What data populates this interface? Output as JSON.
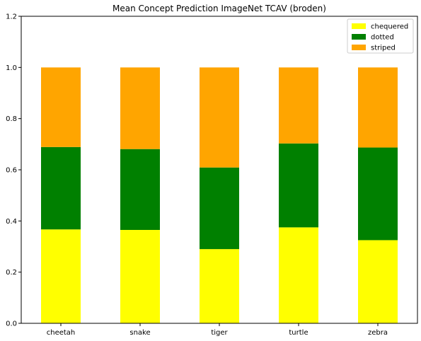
{
  "chart_data": {
    "type": "bar",
    "stacked": true,
    "title": "Mean Concept Prediction ImageNet TCAV (broden)",
    "xlabel": "",
    "ylabel": "",
    "categories": [
      "cheetah",
      "snake",
      "tiger",
      "turtle",
      "zebra"
    ],
    "ylim": [
      0,
      1.2
    ],
    "yticks": [
      0.0,
      0.2,
      0.4,
      0.6,
      0.8,
      1.0,
      1.2
    ],
    "ytick_labels": [
      "0.0",
      "0.2",
      "0.4",
      "0.6",
      "0.8",
      "1.0",
      "1.2"
    ],
    "grid": false,
    "legend_position": "top-right",
    "series": [
      {
        "name": "chequered",
        "color": "#ffff00",
        "values": [
          0.367,
          0.365,
          0.29,
          0.375,
          0.325
        ]
      },
      {
        "name": "dotted",
        "color": "#008000",
        "values": [
          0.322,
          0.316,
          0.319,
          0.328,
          0.362
        ]
      },
      {
        "name": "striped",
        "color": "#ffa500",
        "values": [
          0.311,
          0.319,
          0.391,
          0.297,
          0.313
        ]
      }
    ]
  }
}
